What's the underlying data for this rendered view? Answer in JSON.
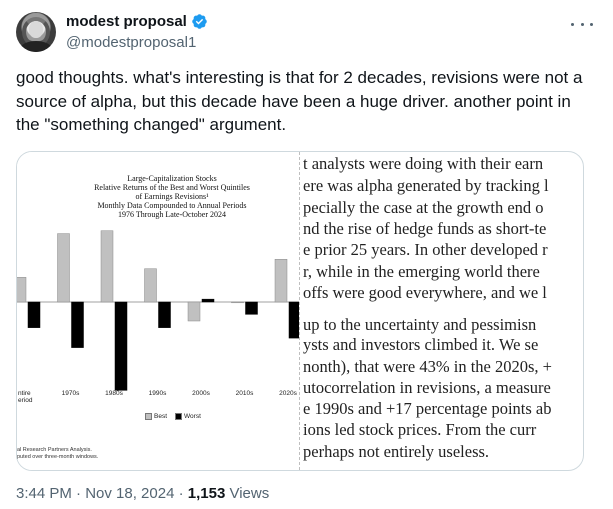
{
  "header": {
    "display_name": "modest proposal",
    "handle": "@modestproposal1"
  },
  "tweet": {
    "text": "good thoughts. what's interesting is that for 2 decades, revisions were not a source of alpha, but this decade have been a huge driver. another point in the \"something changed\" argument."
  },
  "chart": {
    "title_lines": [
      "Large-Capitalization Stocks",
      "Relative Returns of the Best and Worst Quintiles",
      "of Earnings Revisions¹",
      "Monthly Data Compounded to Annual Periods",
      "1976 Through Late-October 2024"
    ],
    "footnote_lines": [
      "al Research Partners Analysis.",
      "puted over three-month windows."
    ],
    "legend": {
      "best": "Best",
      "worst": "Worst"
    }
  },
  "chart_data": {
    "type": "bar",
    "categories": [
      "ntire\neriod",
      "1970s",
      "1980s",
      "1990s",
      "2000s",
      "2010s",
      "2020s"
    ],
    "series": [
      {
        "name": "Best",
        "color": "#c0c0c0",
        "values": [
          26,
          72,
          75,
          35,
          -20,
          0,
          45
        ]
      },
      {
        "name": "Worst",
        "color": "#000000",
        "values": [
          -27,
          -48,
          -93,
          -27,
          3,
          -13,
          -38
        ]
      }
    ],
    "ylim": [
      -100,
      80
    ]
  },
  "book_lines": [
    "t analysts were doing with their earn",
    "ere was alpha generated by tracking l",
    "pecially the case at the growth end o",
    "nd the rise of hedge funds as short-te",
    "e prior 25 years.  In other developed r",
    "r, while in the emerging world there",
    "offs were good everywhere, and we l",
    "",
    " up to the uncertainty and pessimisn",
    "ysts and investors climbed it.  We se",
    "nonth), that were 43% in the 2020s, +",
    "utocorrelation in revisions, a measure",
    "e 1990s and +17 percentage points ab",
    "ions led stock prices.  From the curr",
    " perhaps not entirely useless."
  ],
  "meta": {
    "time": "3:44 PM · Nov 18, 2024 · ",
    "views_count": "1,153",
    "views_label": " Views"
  },
  "colors": {
    "text": "#0f1419",
    "secondary": "#536471",
    "verified": "#1d9bf0"
  }
}
